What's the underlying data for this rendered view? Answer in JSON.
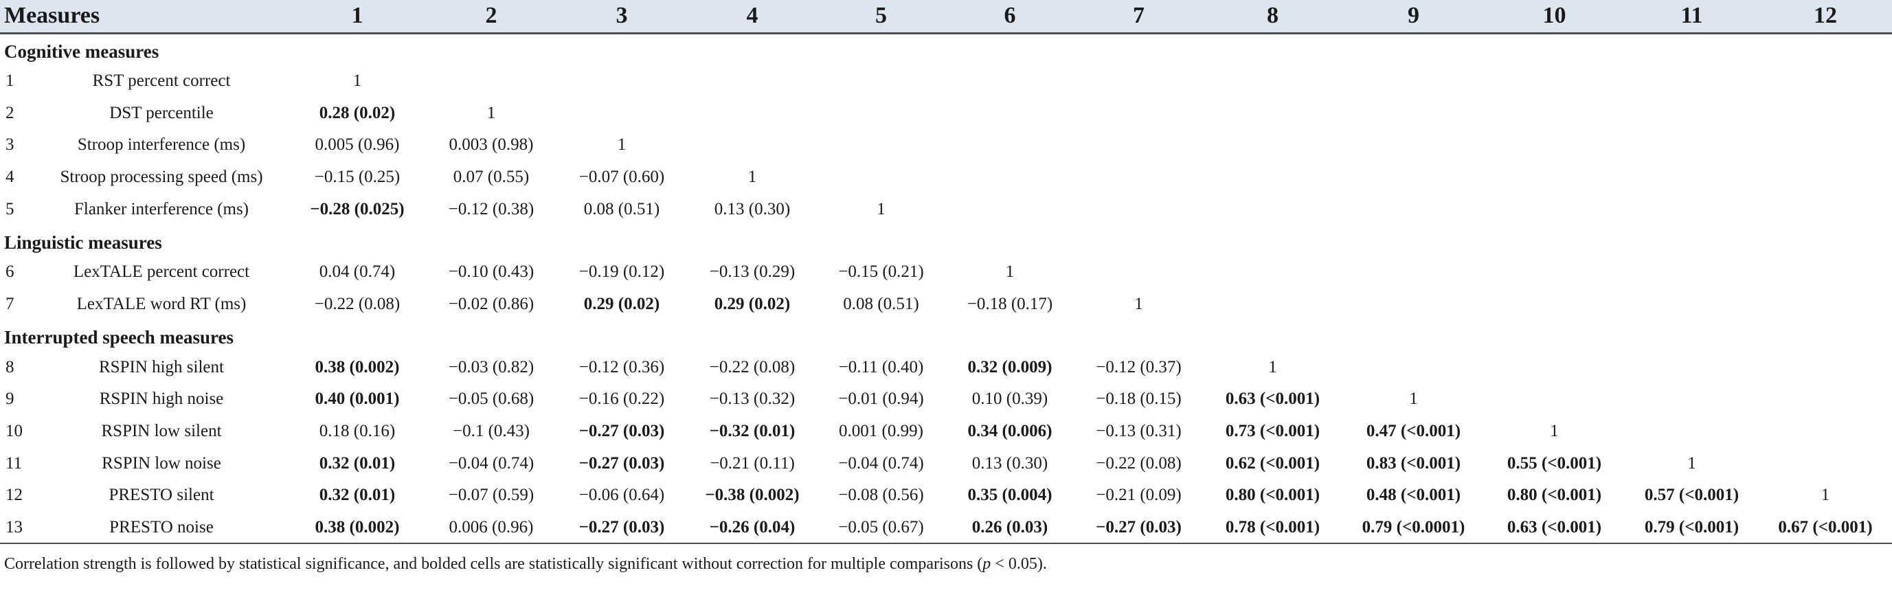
{
  "header": {
    "measures_label": "Measures",
    "columns": [
      "1",
      "2",
      "3",
      "4",
      "5",
      "6",
      "7",
      "8",
      "9",
      "10",
      "11",
      "12"
    ]
  },
  "sections": [
    {
      "title": "Cognitive measures",
      "rows": [
        {
          "num": "1",
          "label": "RST percent correct",
          "cells": [
            {
              "v": "1",
              "b": false
            }
          ]
        },
        {
          "num": "2",
          "label": "DST percentile",
          "cells": [
            {
              "v": "0.28 (0.02)",
              "b": true
            },
            {
              "v": "1",
              "b": false
            }
          ]
        },
        {
          "num": "3",
          "label": "Stroop interference (ms)",
          "cells": [
            {
              "v": "0.005 (0.96)",
              "b": false
            },
            {
              "v": "0.003 (0.98)",
              "b": false
            },
            {
              "v": "1",
              "b": false
            }
          ]
        },
        {
          "num": "4",
          "label": "Stroop processing speed (ms)",
          "cells": [
            {
              "v": "−0.15 (0.25)",
              "b": false
            },
            {
              "v": "0.07 (0.55)",
              "b": false
            },
            {
              "v": "−0.07 (0.60)",
              "b": false
            },
            {
              "v": "1",
              "b": false
            }
          ]
        },
        {
          "num": "5",
          "label": "Flanker interference (ms)",
          "cells": [
            {
              "v": "−0.28 (0.025)",
              "b": true
            },
            {
              "v": "−0.12 (0.38)",
              "b": false
            },
            {
              "v": "0.08 (0.51)",
              "b": false
            },
            {
              "v": "0.13 (0.30)",
              "b": false
            },
            {
              "v": "1",
              "b": false
            }
          ]
        }
      ]
    },
    {
      "title": "Linguistic measures",
      "rows": [
        {
          "num": "6",
          "label": "LexTALE percent correct",
          "cells": [
            {
              "v": "0.04 (0.74)",
              "b": false
            },
            {
              "v": "−0.10 (0.43)",
              "b": false
            },
            {
              "v": "−0.19 (0.12)",
              "b": false
            },
            {
              "v": "−0.13 (0.29)",
              "b": false
            },
            {
              "v": "−0.15 (0.21)",
              "b": false
            },
            {
              "v": "1",
              "b": false
            }
          ]
        },
        {
          "num": "7",
          "label": "LexTALE word RT (ms)",
          "cells": [
            {
              "v": "−0.22 (0.08)",
              "b": false
            },
            {
              "v": "−0.02 (0.86)",
              "b": false
            },
            {
              "v": "0.29 (0.02)",
              "b": true
            },
            {
              "v": "0.29 (0.02)",
              "b": true
            },
            {
              "v": "0.08 (0.51)",
              "b": false
            },
            {
              "v": "−0.18 (0.17)",
              "b": false
            },
            {
              "v": "1",
              "b": false
            }
          ]
        }
      ]
    },
    {
      "title": "Interrupted speech measures",
      "rows": [
        {
          "num": "8",
          "label": "RSPIN high silent",
          "cells": [
            {
              "v": "0.38 (0.002)",
              "b": true
            },
            {
              "v": "−0.03 (0.82)",
              "b": false
            },
            {
              "v": "−0.12 (0.36)",
              "b": false
            },
            {
              "v": "−0.22 (0.08)",
              "b": false
            },
            {
              "v": "−0.11 (0.40)",
              "b": false
            },
            {
              "v": "0.32 (0.009)",
              "b": true
            },
            {
              "v": "−0.12 (0.37)",
              "b": false
            },
            {
              "v": "1",
              "b": false
            }
          ]
        },
        {
          "num": "9",
          "label": "RSPIN high noise",
          "cells": [
            {
              "v": "0.40 (0.001)",
              "b": true
            },
            {
              "v": "−0.05 (0.68)",
              "b": false
            },
            {
              "v": "−0.16 (0.22)",
              "b": false
            },
            {
              "v": "−0.13 (0.32)",
              "b": false
            },
            {
              "v": "−0.01 (0.94)",
              "b": false
            },
            {
              "v": "0.10 (0.39)",
              "b": false
            },
            {
              "v": "−0.18 (0.15)",
              "b": false
            },
            {
              "v": "0.63 (<0.001)",
              "b": true
            },
            {
              "v": "1",
              "b": false
            }
          ]
        },
        {
          "num": "10",
          "label": "RSPIN low silent",
          "cells": [
            {
              "v": "0.18 (0.16)",
              "b": false
            },
            {
              "v": "−0.1 (0.43)",
              "b": false
            },
            {
              "v": "−0.27 (0.03)",
              "b": true
            },
            {
              "v": "−0.32 (0.01)",
              "b": true
            },
            {
              "v": "0.001 (0.99)",
              "b": false
            },
            {
              "v": "0.34 (0.006)",
              "b": true
            },
            {
              "v": "−0.13 (0.31)",
              "b": false
            },
            {
              "v": "0.73 (<0.001)",
              "b": true
            },
            {
              "v": "0.47 (<0.001)",
              "b": true
            },
            {
              "v": "1",
              "b": false
            }
          ]
        },
        {
          "num": "11",
          "label": "RSPIN low noise",
          "cells": [
            {
              "v": "0.32 (0.01)",
              "b": true
            },
            {
              "v": "−0.04 (0.74)",
              "b": false
            },
            {
              "v": "−0.27 (0.03)",
              "b": true
            },
            {
              "v": "−0.21 (0.11)",
              "b": false
            },
            {
              "v": "−0.04 (0.74)",
              "b": false
            },
            {
              "v": "0.13 (0.30)",
              "b": false
            },
            {
              "v": "−0.22 (0.08)",
              "b": false
            },
            {
              "v": "0.62 (<0.001)",
              "b": true
            },
            {
              "v": "0.83 (<0.001)",
              "b": true
            },
            {
              "v": "0.55 (<0.001)",
              "b": true
            },
            {
              "v": "1",
              "b": false
            }
          ]
        },
        {
          "num": "12",
          "label": "PRESTO silent",
          "cells": [
            {
              "v": "0.32 (0.01)",
              "b": true
            },
            {
              "v": "−0.07 (0.59)",
              "b": false
            },
            {
              "v": "−0.06 (0.64)",
              "b": false
            },
            {
              "v": "−0.38 (0.002)",
              "b": true
            },
            {
              "v": "−0.08 (0.56)",
              "b": false
            },
            {
              "v": "0.35 (0.004)",
              "b": true
            },
            {
              "v": "−0.21 (0.09)",
              "b": false
            },
            {
              "v": "0.80 (<0.001)",
              "b": true
            },
            {
              "v": "0.48 (<0.001)",
              "b": true
            },
            {
              "v": "0.80 (<0.001)",
              "b": true
            },
            {
              "v": "0.57 (<0.001)",
              "b": true
            },
            {
              "v": "1",
              "b": false
            }
          ]
        },
        {
          "num": "13",
          "label": "PRESTO noise",
          "cells": [
            {
              "v": "0.38 (0.002)",
              "b": true
            },
            {
              "v": "0.006 (0.96)",
              "b": false
            },
            {
              "v": "−0.27 (0.03)",
              "b": true
            },
            {
              "v": "−0.26 (0.04)",
              "b": true
            },
            {
              "v": "−0.05 (0.67)",
              "b": false
            },
            {
              "v": "0.26 (0.03)",
              "b": true
            },
            {
              "v": "−0.27 (0.03)",
              "b": true
            },
            {
              "v": "0.78 (<0.001)",
              "b": true
            },
            {
              "v": "0.79 (<0.0001)",
              "b": true
            },
            {
              "v": "0.63 (<0.001)",
              "b": true
            },
            {
              "v": "0.79 (<0.001)",
              "b": true
            },
            {
              "v": "0.67 (<0.001)",
              "b": true
            }
          ]
        }
      ]
    }
  ],
  "footnote": {
    "text_before": "Correlation strength is followed by statistical significance, and bolded cells are statistically significant without correction for multiple comparisons (",
    "p_symbol": "p",
    "text_after": " < 0.05)."
  }
}
